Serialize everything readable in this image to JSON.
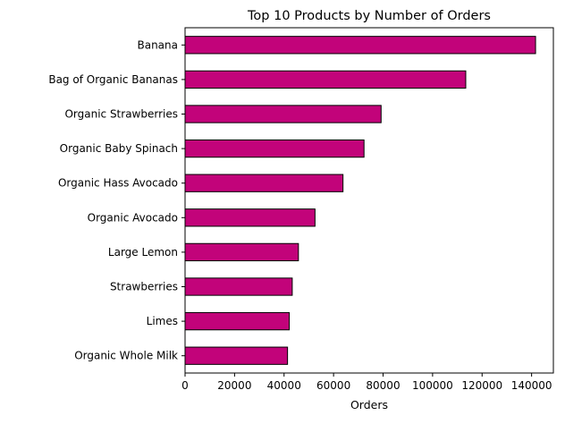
{
  "chart_data": {
    "type": "bar",
    "orientation": "horizontal",
    "title": "Top 10 Products by Number of Orders",
    "xlabel": "Orders",
    "ylabel": "",
    "categories": [
      "Banana",
      "Bag of Organic Bananas",
      "Organic Strawberries",
      "Organic Baby Spinach",
      "Organic Hass Avocado",
      "Organic Avocado",
      "Large Lemon",
      "Strawberries",
      "Limes",
      "Organic Whole Milk"
    ],
    "values": [
      141600,
      113400,
      79200,
      72300,
      63800,
      52500,
      45800,
      43300,
      42100,
      41400
    ],
    "xlim": [
      0,
      148800
    ],
    "xticks": [
      0,
      20000,
      40000,
      60000,
      80000,
      100000,
      120000,
      140000
    ],
    "grid": false,
    "legend": "none",
    "bar_color": "#c2037a",
    "edge_color": "#000000"
  }
}
